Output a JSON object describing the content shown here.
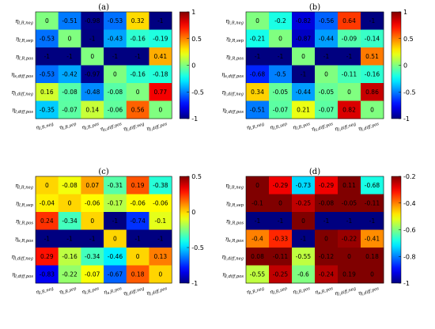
{
  "chart_data": [
    {
      "type": "heatmap",
      "title": "(a)",
      "rows": [
        "η_{l,R,neg}",
        "η_{l,R,sep}",
        "η_{l,R,pos}",
        "η_{s,diff,pos}",
        "η_{l,diff,neg}",
        "η_{l,diff,pos}"
      ],
      "columns": [
        "η_{l,R,neg}",
        "η_{l,R,sep}",
        "η_{l,R,pos}",
        "η_{s,diff,pos}",
        "η_{l,diff,neg}",
        "η_{l,diff,pos}"
      ],
      "values": [
        [
          0,
          -0.51,
          -0.98,
          -0.53,
          0.32,
          -1
        ],
        [
          -0.53,
          0,
          -1,
          -0.43,
          -0.16,
          -0.19
        ],
        [
          -1,
          -1,
          0,
          -1,
          -1,
          0.41
        ],
        [
          -0.53,
          -0.42,
          -0.97,
          0,
          -0.16,
          -0.18
        ],
        [
          0.16,
          -0.08,
          -0.48,
          -0.08,
          0,
          0.77
        ],
        [
          -0.35,
          -0.07,
          0.14,
          -0.06,
          0.56,
          0
        ]
      ],
      "colorbar": {
        "min": -1,
        "max": 1,
        "ticks": [
          "1",
          "0.5",
          "0",
          "-0.5",
          "-1"
        ]
      }
    },
    {
      "type": "heatmap",
      "title": "(b)",
      "rows": [
        "η_{l,R,neg}",
        "η_{l,R,sep}",
        "η_{l,R,pos}",
        "η_{s,diff,pos}",
        "η_{l,diff,neg}",
        "η_{l,diff,pos}"
      ],
      "columns": [
        "η_{l,R,neg}",
        "η_{l,R,sep}",
        "η_{l,R,pos}",
        "η_{s,diff,pos}",
        "η_{l,diff,neg}",
        "η_{l,diff,pos}"
      ],
      "values": [
        [
          0,
          -0.2,
          -0.82,
          -0.56,
          0.64,
          -1
        ],
        [
          -0.21,
          0,
          -0.87,
          -0.44,
          -0.09,
          -0.14
        ],
        [
          -1,
          -1,
          0,
          -1,
          -1,
          0.51
        ],
        [
          -0.68,
          -0.5,
          -1,
          0,
          -0.11,
          -0.16
        ],
        [
          0.34,
          -0.05,
          -0.44,
          -0.05,
          0,
          0.86
        ],
        [
          -0.51,
          -0.07,
          0.21,
          -0.07,
          0.82,
          0
        ]
      ],
      "colorbar": {
        "min": -1,
        "max": 1,
        "ticks": [
          "1",
          "0.5",
          "0",
          "-0.5",
          "-1"
        ]
      }
    },
    {
      "type": "heatmap",
      "title": "(c)",
      "rows": [
        "η_{l,R,neg}",
        "η_{l,R,sep}",
        "η_{l,R,pos}",
        "η_{s,R,pos}",
        "η_{l,diff,neg}",
        "η_{l,diff,pos}"
      ],
      "columns": [
        "η_{l,R,neg}",
        "η_{l,R,sep}",
        "η_{l,R,pos}",
        "η_{s,R,pos}",
        "η_{l,diff,neg}",
        "η_{l,diff,pos}"
      ],
      "values": [
        [
          0,
          -0.08,
          0.07,
          -0.31,
          0.19,
          -0.38
        ],
        [
          -0.04,
          0,
          -0.06,
          -0.17,
          -0.06,
          -0.06
        ],
        [
          0.24,
          -0.34,
          0,
          -1,
          -0.74,
          -0.1
        ],
        [
          -1,
          -1,
          -1,
          0,
          -1,
          -1
        ],
        [
          0.29,
          -0.16,
          -0.34,
          -0.46,
          0,
          0.13
        ],
        [
          -0.83,
          -0.22,
          -0.07,
          -0.67,
          0.18,
          0
        ]
      ],
      "colorbar": {
        "min": -1,
        "max": 0.5,
        "ticks": [
          "0.5",
          "0",
          "-0.5",
          "-1"
        ]
      }
    },
    {
      "type": "heatmap",
      "title": "(d)",
      "rows": [
        "η_{l,R,neg}",
        "η_{l,R,sep}",
        "η_{l,R,pos}",
        "η_{s,R,pos}",
        "η_{l,diff,neg}",
        "η_{l,diff,pos}"
      ],
      "columns": [
        "η_{l,R,neg}",
        "η_{l,R,sep}",
        "η_{l,R,pos}",
        "η_{s,R,pos}",
        "η_{l,diff,neg}",
        "η_{l,diff,pos}"
      ],
      "values": [
        [
          0,
          -0.29,
          -0.73,
          -0.29,
          0.11,
          -0.68
        ],
        [
          -0.1,
          0,
          -0.25,
          -0.08,
          -0.05,
          -0.11
        ],
        [
          -1,
          -1,
          0,
          -1,
          -1,
          -1
        ],
        [
          -0.4,
          -0.33,
          -1,
          0,
          -0.22,
          -0.41
        ],
        [
          0.08,
          -0.11,
          -0.55,
          -0.12,
          0,
          0.18
        ],
        [
          -0.55,
          -0.25,
          -0.6,
          -0.24,
          0.19,
          0
        ]
      ],
      "colorbar": {
        "min": -1,
        "max": -0.2,
        "ticks": [
          "-0.2",
          "-0.4",
          "-0.6",
          "-0.8",
          "-1"
        ]
      }
    }
  ]
}
